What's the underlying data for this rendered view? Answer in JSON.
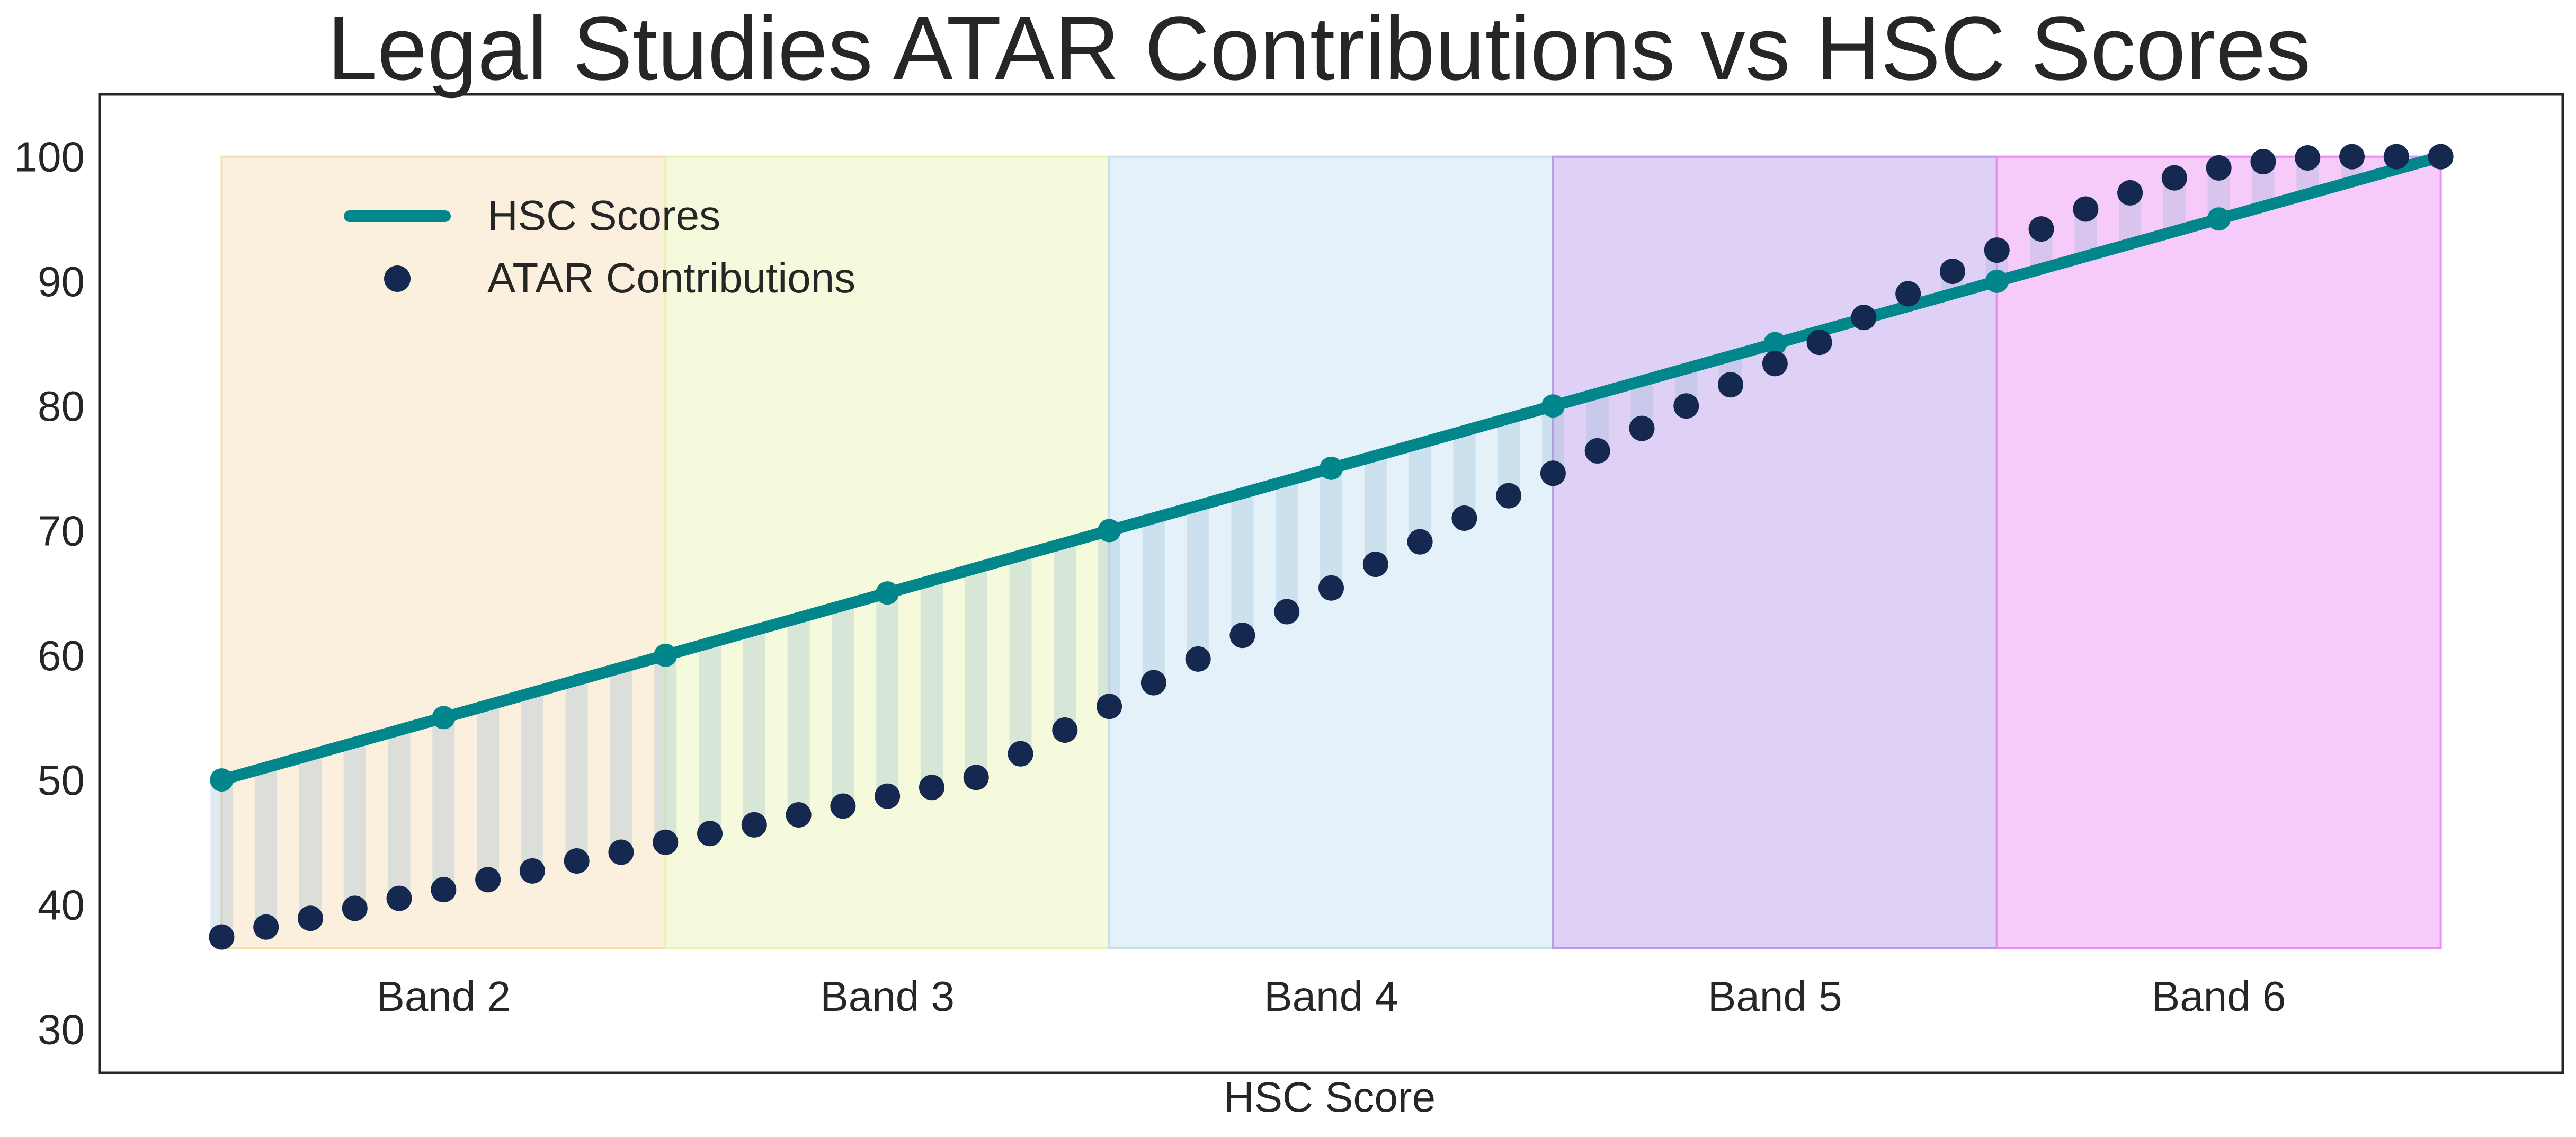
{
  "chart_data": {
    "type": "line",
    "title": "Legal Studies ATAR Contributions vs HSC Scores",
    "xlabel": "HSC Score",
    "ylabel": "",
    "ylim": [
      26.5,
      105
    ],
    "y_ticks": [
      30,
      40,
      50,
      60,
      70,
      80,
      90,
      100
    ],
    "grid": false,
    "legend_position": "top-left",
    "bands": [
      {
        "label": "Band 2",
        "start": 50,
        "end": 60,
        "color": "#f5deb3"
      },
      {
        "label": "Band 3",
        "start": 60,
        "end": 70,
        "color": "#e6f5b0"
      },
      {
        "label": "Band 4",
        "start": 70,
        "end": 80,
        "color": "#c6dff0"
      },
      {
        "label": "Band 5",
        "start": 80,
        "end": 90,
        "color": "#b99ae8"
      },
      {
        "label": "Band 6",
        "start": 90,
        "end": 100,
        "color": "#ea8cf5"
      }
    ],
    "band_range": [
      36.5,
      100
    ],
    "series": [
      {
        "name": "HSC Scores",
        "kind": "line",
        "color": "#00868b",
        "x": [
          50,
          55,
          60,
          65,
          70,
          75,
          80,
          85,
          90,
          95,
          100
        ],
        "values": [
          50,
          55,
          60,
          65,
          70,
          75,
          80,
          85,
          90,
          95,
          100
        ]
      },
      {
        "name": "ATAR Contributions",
        "kind": "scatter",
        "color": "#142850",
        "x": [
          50,
          51,
          52,
          53,
          54,
          55,
          56,
          57,
          58,
          59,
          60,
          61,
          62,
          63,
          64,
          65,
          66,
          67,
          68,
          69,
          70,
          71,
          72,
          73,
          74,
          75,
          76,
          77,
          78,
          79,
          80,
          81,
          82,
          83,
          84,
          85,
          86,
          87,
          88,
          89,
          90,
          91,
          92,
          93,
          94,
          95,
          96,
          97,
          98,
          99,
          100
        ],
        "values": [
          37.4,
          38.2,
          38.9,
          39.7,
          40.5,
          41.2,
          42.0,
          42.7,
          43.5,
          44.2,
          45.0,
          45.7,
          46.4,
          47.2,
          47.9,
          48.7,
          49.4,
          50.2,
          52.1,
          54.0,
          55.9,
          57.8,
          59.7,
          61.6,
          63.5,
          65.4,
          67.3,
          69.1,
          71.0,
          72.8,
          74.6,
          76.4,
          78.2,
          80.0,
          81.7,
          83.4,
          85.1,
          87.1,
          89.0,
          90.8,
          92.5,
          94.2,
          95.8,
          97.1,
          98.3,
          99.1,
          99.6,
          99.9,
          100.0,
          100.0,
          100.0
        ]
      }
    ]
  }
}
